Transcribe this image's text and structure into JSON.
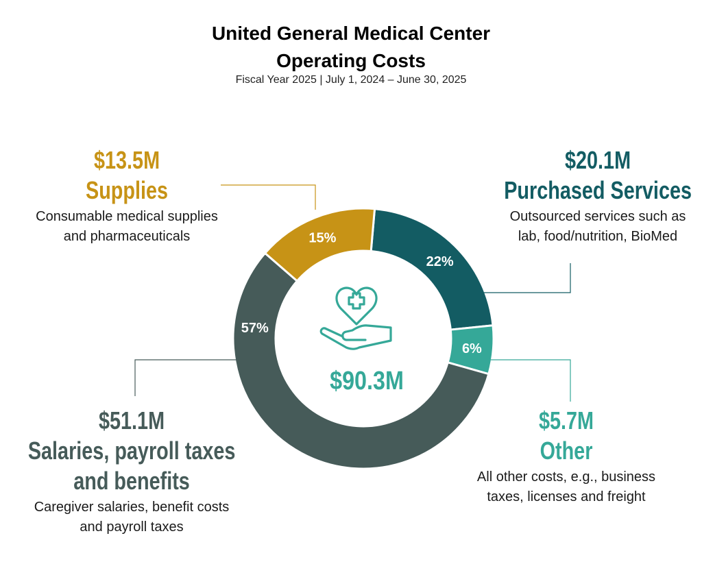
{
  "title_line1": "United General Medical Center",
  "title_line2": "Operating Costs",
  "subtitle": "Fiscal Year 2025 | July 1, 2024 – June 30, 2025",
  "colors": {
    "supplies": "#C79316",
    "purchased": "#135C63",
    "other": "#35A898",
    "salaries": "#465B59",
    "center": "#35A898"
  },
  "chart_data": {
    "type": "pie",
    "donut": true,
    "total_label": "$90.3M",
    "center_icon": "heart-hand-icon",
    "order": "clockwise from top",
    "slices": [
      {
        "key": "purchased",
        "label": "Purchased Services",
        "amount": "$20.1M",
        "value": 20.1,
        "percent": 22,
        "pct_label": "22%",
        "desc": [
          "Outsourced services such as",
          "lab, food/nutrition, BioMed"
        ]
      },
      {
        "key": "other",
        "label": "Other",
        "amount": "$5.7M",
        "value": 5.7,
        "percent": 6,
        "pct_label": "6%",
        "desc": [
          "All other costs, e.g., business",
          "taxes, licenses and freight"
        ]
      },
      {
        "key": "salaries",
        "label": "Salaries, payroll taxes and benefits",
        "label_lines": [
          "Salaries, payroll taxes",
          "and benefits"
        ],
        "amount": "$51.1M",
        "value": 51.1,
        "percent": 57,
        "pct_label": "57%",
        "desc": [
          "Caregiver salaries, benefit costs",
          "and payroll taxes"
        ]
      },
      {
        "key": "supplies",
        "label": "Supplies",
        "amount": "$13.5M",
        "value": 13.5,
        "percent": 15,
        "pct_label": "15%",
        "desc": [
          "Consumable medical supplies",
          "and pharmaceuticals"
        ]
      }
    ]
  }
}
